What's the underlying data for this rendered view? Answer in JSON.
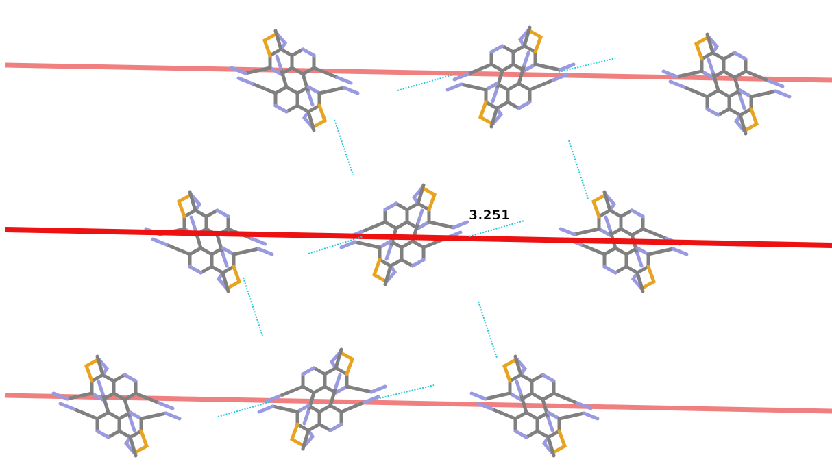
{
  "annotation": "3.251"
}
